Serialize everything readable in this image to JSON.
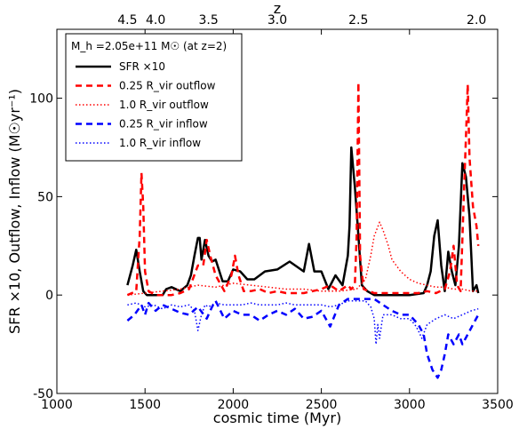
{
  "chart_data": {
    "type": "line",
    "xlabel": "cosmic time (Myr)",
    "ylabel": "SFR ×10, Outflow, Inflow  (M☉yr⁻¹)",
    "top_xlabel": "z",
    "xlim": [
      1000,
      3500
    ],
    "ylim": [
      -50,
      135
    ],
    "x_ticks": [
      1000,
      1500,
      2000,
      2500,
      3000,
      3500
    ],
    "y_ticks": [
      -50,
      0,
      50,
      100
    ],
    "top_ticks": [
      {
        "label": "4.5",
        "x": 1400
      },
      {
        "label": "4.0",
        "x": 1560
      },
      {
        "label": "3.5",
        "x": 1860
      },
      {
        "label": "3.0",
        "x": 2250
      },
      {
        "label": "2.5",
        "x": 2710
      },
      {
        "label": "2.0",
        "x": 3380
      }
    ],
    "legend_title": "M_h =2.05e+11 M☉ (at z=2)",
    "legend_position": "top-left",
    "series": [
      {
        "name": "SFR ×10",
        "color": "#000000",
        "dash": "solid",
        "width": 2.5,
        "x": [
          1400,
          1430,
          1450,
          1470,
          1490,
          1510,
          1550,
          1600,
          1620,
          1650,
          1700,
          1740,
          1760,
          1780,
          1800,
          1810,
          1820,
          1840,
          1860,
          1880,
          1900,
          1940,
          1970,
          2000,
          2040,
          2080,
          2120,
          2180,
          2250,
          2320,
          2400,
          2430,
          2460,
          2500,
          2540,
          2580,
          2620,
          2650,
          2660,
          2670,
          2690,
          2710,
          2730,
          2760,
          2800,
          2900,
          3000,
          3080,
          3100,
          3120,
          3140,
          3160,
          3180,
          3200,
          3220,
          3240,
          3260,
          3280,
          3300,
          3320,
          3340,
          3360,
          3380,
          3390
        ],
        "y": [
          5,
          15,
          23,
          12,
          2,
          0,
          0,
          0,
          3,
          4,
          2,
          5,
          10,
          20,
          29,
          29,
          18,
          28,
          20,
          17,
          18,
          7,
          7,
          13,
          12,
          8,
          8,
          12,
          13,
          17,
          12,
          26,
          12,
          12,
          3,
          10,
          5,
          20,
          35,
          75,
          55,
          30,
          5,
          2,
          0,
          0,
          0,
          1,
          5,
          12,
          30,
          38,
          15,
          2,
          22,
          12,
          5,
          25,
          67,
          60,
          40,
          2,
          5,
          1
        ]
      },
      {
        "name": "0.25 R_vir outflow",
        "color": "#ff0000",
        "dash": "7,5",
        "width": 2.5,
        "x": [
          1400,
          1450,
          1470,
          1480,
          1490,
          1500,
          1520,
          1560,
          1600,
          1650,
          1700,
          1750,
          1800,
          1830,
          1850,
          1870,
          1900,
          1950,
          1990,
          2010,
          2030,
          2060,
          2100,
          2150,
          2200,
          2250,
          2300,
          2350,
          2400,
          2450,
          2500,
          2550,
          2600,
          2650,
          2670,
          2690,
          2700,
          2710,
          2720,
          2740,
          2800,
          2900,
          3000,
          3050,
          3100,
          3150,
          3200,
          3230,
          3250,
          3270,
          3290,
          3310,
          3320,
          3330,
          3340,
          3360,
          3380,
          3390
        ],
        "y": [
          0,
          2,
          30,
          62,
          45,
          12,
          2,
          0,
          0,
          0,
          1,
          3,
          15,
          15,
          28,
          20,
          10,
          2,
          10,
          20,
          10,
          2,
          2,
          3,
          1,
          2,
          1,
          1,
          1,
          2,
          3,
          5,
          2,
          5,
          3,
          5,
          30,
          108,
          20,
          3,
          1,
          1,
          1,
          1,
          2,
          1,
          3,
          12,
          25,
          5,
          2,
          55,
          80,
          107,
          70,
          45,
          35,
          25
        ]
      },
      {
        "name": "1.0 R_vir outflow",
        "color": "#ff0000",
        "dash": "1.5,2.5",
        "width": 1.5,
        "x": [
          1400,
          1500,
          1600,
          1700,
          1800,
          1900,
          2000,
          2100,
          2200,
          2300,
          2400,
          2500,
          2600,
          2700,
          2750,
          2780,
          2800,
          2830,
          2850,
          2880,
          2900,
          2950,
          3000,
          3050,
          3100,
          3150,
          3200,
          3250,
          3300,
          3350,
          3390
        ],
        "y": [
          0,
          1,
          2,
          3,
          5,
          4,
          6,
          5,
          4,
          3,
          3,
          2,
          2,
          3,
          8,
          20,
          30,
          37,
          33,
          25,
          18,
          12,
          8,
          6,
          5,
          4,
          4,
          3,
          3,
          2,
          2
        ]
      },
      {
        "name": "0.25 R_vir inflow",
        "color": "#0000ff",
        "dash": "7,5",
        "width": 2.5,
        "x": [
          1400,
          1440,
          1480,
          1500,
          1520,
          1560,
          1600,
          1650,
          1700,
          1750,
          1800,
          1850,
          1880,
          1900,
          1950,
          2000,
          2050,
          2100,
          2150,
          2200,
          2250,
          2300,
          2350,
          2400,
          2450,
          2500,
          2550,
          2600,
          2650,
          2700,
          2750,
          2800,
          2850,
          2900,
          2950,
          3000,
          3050,
          3080,
          3100,
          3130,
          3160,
          3180,
          3200,
          3220,
          3250,
          3280,
          3300,
          3330,
          3360,
          3390
        ],
        "y": [
          -13,
          -10,
          -5,
          -10,
          -4,
          -8,
          -5,
          -7,
          -9,
          -10,
          -6,
          -12,
          -6,
          -3,
          -12,
          -8,
          -10,
          -10,
          -13,
          -10,
          -8,
          -10,
          -7,
          -12,
          -11,
          -8,
          -16,
          -5,
          -2,
          -2,
          -2,
          -2,
          -5,
          -8,
          -10,
          -10,
          -15,
          -20,
          -30,
          -38,
          -42,
          -38,
          -30,
          -20,
          -25,
          -20,
          -25,
          -20,
          -15,
          -10
        ]
      },
      {
        "name": "1.0 R_vir inflow",
        "color": "#0000ff",
        "dash": "1.5,2.5",
        "width": 1.5,
        "x": [
          1400,
          1450,
          1500,
          1550,
          1600,
          1650,
          1700,
          1750,
          1780,
          1800,
          1820,
          1840,
          1860,
          1900,
          1950,
          2000,
          2050,
          2100,
          2150,
          2200,
          2250,
          2300,
          2350,
          2400,
          2450,
          2500,
          2550,
          2600,
          2650,
          2700,
          2750,
          2780,
          2800,
          2810,
          2820,
          2830,
          2850,
          2900,
          2950,
          3000,
          3030,
          3050,
          3070,
          3100,
          3150,
          3200,
          3250,
          3300,
          3350,
          3390
        ],
        "y": [
          -5,
          -4,
          -6,
          -5,
          -7,
          -5,
          -6,
          -5,
          -8,
          -18,
          -10,
          -5,
          -6,
          -4,
          -5,
          -5,
          -5,
          -4,
          -5,
          -5,
          -5,
          -4,
          -5,
          -5,
          -5,
          -5,
          -6,
          -5,
          -3,
          -3,
          -3,
          -6,
          -12,
          -25,
          -15,
          -22,
          -10,
          -10,
          -12,
          -12,
          -15,
          -18,
          -22,
          -15,
          -12,
          -10,
          -12,
          -10,
          -8,
          -7
        ]
      }
    ]
  }
}
